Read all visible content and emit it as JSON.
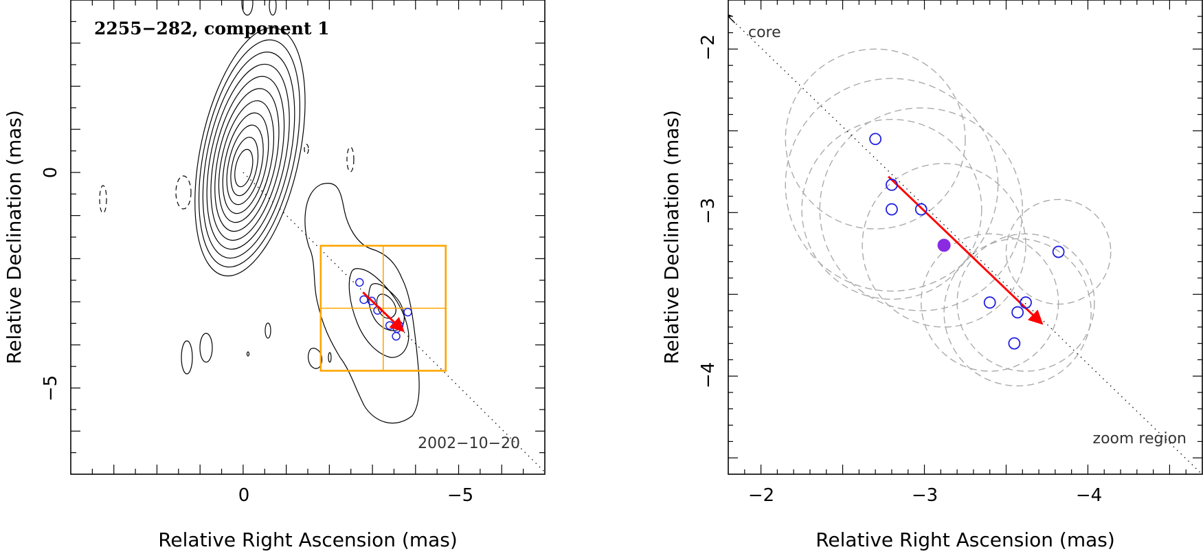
{
  "chart_data": [
    {
      "type": "contour",
      "title": "2255−282, component 1",
      "epoch_label": "2002−10−20",
      "xlabel": "Relative Right Ascension (mas)",
      "ylabel": "Relative Declination (mas)",
      "xlim": [
        4.0,
        -7.0
      ],
      "ylim": [
        -7.0,
        4.0
      ],
      "xticks": [
        0,
        -5
      ],
      "yticks": [
        0,
        -5
      ],
      "x_tick_labels": [
        "0",
        "−5"
      ],
      "y_tick_labels": [
        "0",
        "−5"
      ],
      "core_contour_levels": 11,
      "core_center": [
        0,
        0
      ],
      "trajectory_line": {
        "from": [
          0,
          0
        ],
        "to": [
          -7.0,
          -6.95
        ]
      },
      "epoch_positions": [
        {
          "x": -2.7,
          "y": -2.55
        },
        {
          "x": -2.8,
          "y": -2.95
        },
        {
          "x": -2.98,
          "y": -2.98
        },
        {
          "x": -3.12,
          "y": -3.2
        },
        {
          "x": -3.4,
          "y": -3.55
        },
        {
          "x": -3.62,
          "y": -3.55
        },
        {
          "x": -3.57,
          "y": -3.62
        },
        {
          "x": -3.55,
          "y": -3.8
        },
        {
          "x": -3.82,
          "y": -3.24
        }
      ],
      "motion_vector": {
        "from": [
          -2.78,
          -2.78
        ],
        "to": [
          -3.72,
          -3.68
        ],
        "color": "#ff0000"
      },
      "zoom_box": {
        "x": [
          -1.8,
          -4.7
        ],
        "y": [
          -1.7,
          -4.6
        ],
        "color": "#ffa500"
      }
    },
    {
      "type": "scatter",
      "xlabel": "Relative Right Ascension (mas)",
      "ylabel": "Relative Declination (mas)",
      "xlim": [
        -1.8,
        -4.7
      ],
      "ylim": [
        -4.6,
        -1.7
      ],
      "xticks": [
        -2,
        -3,
        -4
      ],
      "yticks": [
        -2,
        -3,
        -4
      ],
      "x_tick_labels": [
        "−2",
        "−3",
        "−4"
      ],
      "y_tick_labels": [
        "−2",
        "−3",
        "−4"
      ],
      "annotations": {
        "core": "core",
        "zoom": "zoom region"
      },
      "series": [
        {
          "name": "epoch positions",
          "marker": "open-circle",
          "color": "#1f1fe0",
          "points": [
            {
              "x": -2.7,
              "y": -2.55
            },
            {
              "x": -2.8,
              "y": -2.83
            },
            {
              "x": -2.8,
              "y": -2.98
            },
            {
              "x": -2.98,
              "y": -2.98
            },
            {
              "x": -3.4,
              "y": -3.55
            },
            {
              "x": -3.62,
              "y": -3.55
            },
            {
              "x": -3.57,
              "y": -3.61
            },
            {
              "x": -3.55,
              "y": -3.8
            },
            {
              "x": -3.82,
              "y": -3.24
            }
          ]
        },
        {
          "name": "mean position",
          "marker": "filled-circle",
          "color": "#8a2be2",
          "points": [
            {
              "x": -3.12,
              "y": -3.2
            }
          ]
        }
      ],
      "error_circles": [
        {
          "x": -2.7,
          "y": -2.55,
          "r": 0.55
        },
        {
          "x": -2.8,
          "y": -2.83,
          "r": 0.65
        },
        {
          "x": -2.8,
          "y": -2.98,
          "r": 0.55
        },
        {
          "x": -2.98,
          "y": -2.98,
          "r": 0.62
        },
        {
          "x": -3.12,
          "y": -3.2,
          "r": 0.5
        },
        {
          "x": -3.4,
          "y": -3.55,
          "r": 0.42
        },
        {
          "x": -3.62,
          "y": -3.55,
          "r": 0.42
        },
        {
          "x": -3.57,
          "y": -3.61,
          "r": 0.45
        },
        {
          "x": -3.82,
          "y": -3.24,
          "r": 0.32
        }
      ],
      "motion_vector": {
        "from": [
          -2.78,
          -2.78
        ],
        "to": [
          -3.72,
          -3.68
        ],
        "color": "#ff0000"
      },
      "trajectory_line": {
        "from": [
          -1.78,
          -1.78
        ],
        "to": [
          -4.75,
          -4.65
        ]
      }
    }
  ]
}
